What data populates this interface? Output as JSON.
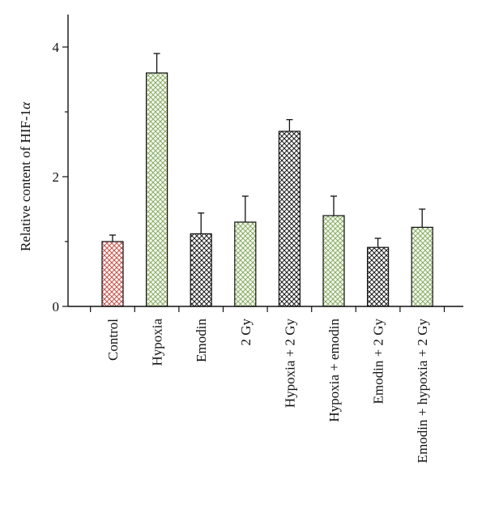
{
  "chart_data": {
    "type": "bar",
    "title": "",
    "xlabel": "",
    "ylabel": "Relative content of HIF-1",
    "ylabel_symbol": "α",
    "ylim": [
      0,
      4.5
    ],
    "yticks": [
      0,
      2,
      4
    ],
    "ytick_labels": [
      "0",
      "2",
      "4"
    ],
    "grid": false,
    "categories": [
      "Control",
      "Hypoxia",
      "Emodin",
      "2 Gy",
      "Hypoxia + 2 Gy",
      "Hypoxia + emodin",
      "Emodin + 2 Gy",
      "Emodin + hypoxia + 2 Gy"
    ],
    "values": [
      1.0,
      3.6,
      1.12,
      1.3,
      2.7,
      1.4,
      0.91,
      1.22
    ],
    "errors": [
      0.1,
      0.3,
      0.32,
      0.4,
      0.18,
      0.3,
      0.14,
      0.28
    ],
    "fill_styles": [
      "red-crosshatch",
      "green-crosshatch",
      "black-crosshatch",
      "green-crosshatch",
      "black-crosshatch",
      "green-crosshatch",
      "black-crosshatch",
      "green-crosshatch"
    ],
    "colors": {
      "red-crosshatch": "#c0473f",
      "green-crosshatch": "#7fa65a",
      "black-crosshatch": "#1a1a1a",
      "axis": "#111111"
    }
  }
}
